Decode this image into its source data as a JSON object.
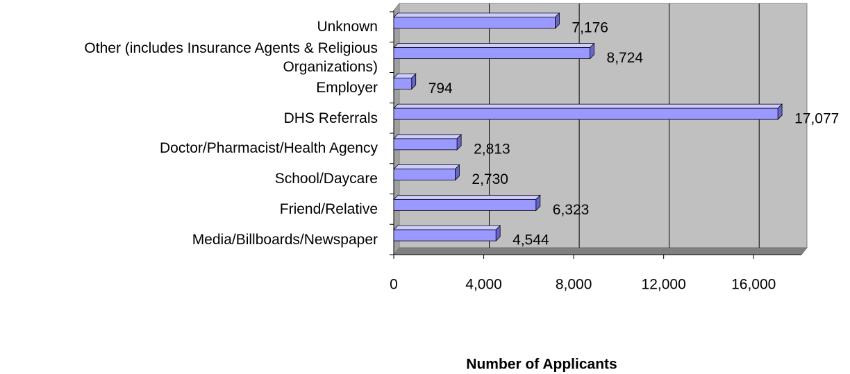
{
  "chart_data": {
    "type": "bar",
    "orientation": "horizontal",
    "x_label": "Number of Applicants",
    "categories": [
      "Unknown",
      "Other (includes Insurance Agents & Religious Organizations)",
      "Employer",
      "DHS Referrals",
      "Doctor/Pharmacist/Health Agency",
      "School/Daycare",
      "Friend/Relative",
      "Media/Billboards/Newspaper"
    ],
    "values": [
      7176,
      8724,
      794,
      17077,
      2813,
      2730,
      6323,
      4544
    ],
    "value_labels": [
      "7,176",
      "8,724",
      "794",
      "17,077",
      "2,813",
      "2,730",
      "6,323",
      "4,544"
    ],
    "color": "#9999ff",
    "xlim": [
      0,
      18000
    ],
    "xticks": [
      0,
      {
        "value": 4000,
        "label": "4,000"
      },
      {
        "value": 8000,
        "label": "8,000"
      },
      {
        "value": 12000,
        "label": "12,000"
      },
      {
        "value": 16000,
        "label": "16,000"
      }
    ],
    "grid": true
  }
}
